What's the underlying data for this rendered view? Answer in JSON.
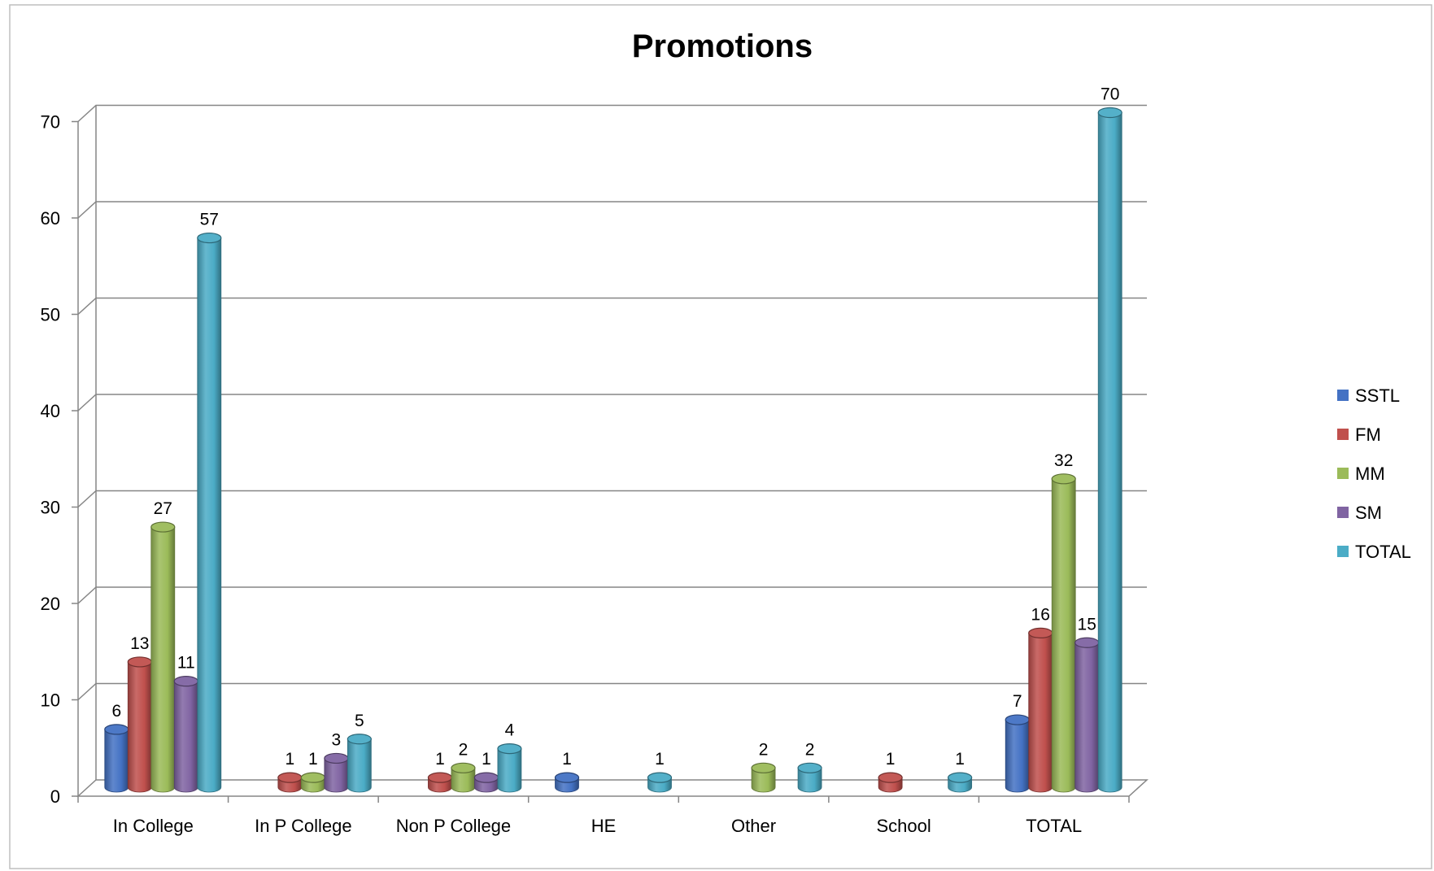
{
  "chart_data": {
    "type": "bar",
    "title": "Promotions",
    "xlabel": "",
    "ylabel": "",
    "ylim": [
      0,
      70
    ],
    "yticks": [
      0,
      10,
      20,
      30,
      40,
      50,
      60,
      70
    ],
    "grid": true,
    "legend_position": "right",
    "categories": [
      "In College",
      "In P College",
      "Non P College",
      "HE",
      "Other",
      "School",
      "TOTAL"
    ],
    "series": [
      {
        "name": "SSTL",
        "color": "#4472C4",
        "values": [
          6,
          null,
          null,
          1,
          null,
          null,
          7
        ]
      },
      {
        "name": "FM",
        "color": "#C0504D",
        "values": [
          13,
          1,
          1,
          null,
          null,
          1,
          16
        ]
      },
      {
        "name": "MM",
        "color": "#9BBB59",
        "values": [
          27,
          1,
          2,
          null,
          2,
          null,
          32
        ]
      },
      {
        "name": "SM",
        "color": "#8064A2",
        "values": [
          11,
          3,
          1,
          null,
          null,
          null,
          15
        ]
      },
      {
        "name": "TOTAL",
        "color": "#4BACC6",
        "values": [
          57,
          5,
          4,
          1,
          2,
          1,
          70
        ]
      }
    ]
  }
}
